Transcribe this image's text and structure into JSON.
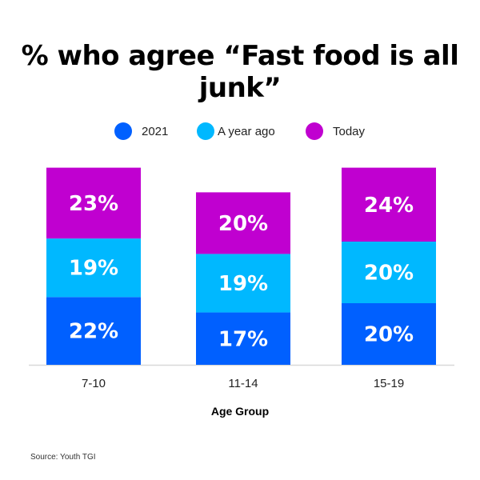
{
  "chart_data": {
    "type": "bar",
    "stacked": true,
    "title": "% who agree “Fast food is all junk”",
    "xlabel": "Age Group",
    "ylabel": "",
    "categories": [
      "7-10",
      "11-14",
      "15-19"
    ],
    "series": [
      {
        "name": "2021",
        "values": [
          22,
          17,
          20
        ],
        "labels": [
          "22%",
          "17%",
          "20%"
        ],
        "color": "#0060FF"
      },
      {
        "name": "A year ago",
        "values": [
          19,
          19,
          20
        ],
        "labels": [
          "19%",
          "19%",
          "20%"
        ],
        "color": "#00B8FF"
      },
      {
        "name": "Today",
        "values": [
          23,
          20,
          24
        ],
        "labels": [
          "23%",
          "20%",
          "24%"
        ],
        "color": "#C000D0"
      }
    ],
    "grid": false,
    "legend_placement": "top-center",
    "source": "Source: Youth TGI"
  }
}
